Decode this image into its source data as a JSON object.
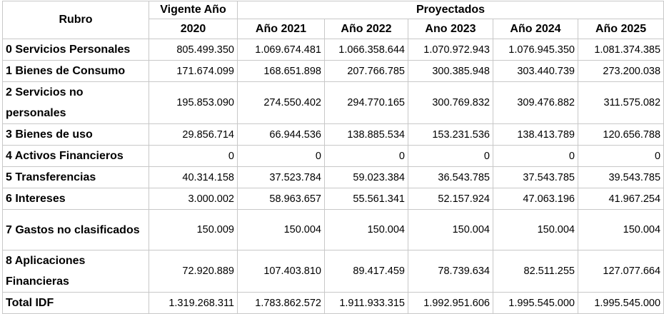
{
  "header": {
    "rubro": "Rubro",
    "vigente_line1": "Vigente Año",
    "vigente_line2": "2020",
    "proyectados": "Proyectados",
    "years": [
      "Año 2021",
      "Año 2022",
      "Ano 2023",
      "Año 2024",
      "Año 2025"
    ]
  },
  "rows": [
    {
      "label": "0 Servicios Personales",
      "values": [
        "805.499.350",
        "1.069.674.481",
        "1.066.358.644",
        "1.070.972.943",
        "1.076.945.350",
        "1.081.374.385"
      ]
    },
    {
      "label": "1 Bienes de Consumo",
      "values": [
        "171.674.099",
        "168.651.898",
        "207.766.785",
        "300.385.948",
        "303.440.739",
        "273.200.038"
      ]
    },
    {
      "label": "2 Servicios no personales",
      "values": [
        "195.853.090",
        "274.550.402",
        "294.770.165",
        "300.769.832",
        "309.476.882",
        "311.575.082"
      ]
    },
    {
      "label": "3 Bienes de uso",
      "values": [
        "29.856.714",
        "66.944.536",
        "138.885.534",
        "153.231.536",
        "138.413.789",
        "120.656.788"
      ]
    },
    {
      "label": "4 Activos Financieros",
      "values": [
        "0",
        "0",
        "0",
        "0",
        "0",
        "0"
      ]
    },
    {
      "label": "5 Transferencias",
      "values": [
        "40.314.158",
        "37.523.784",
        "59.023.384",
        "36.543.785",
        "37.543.785",
        "39.543.785"
      ]
    },
    {
      "label": "6 Intereses",
      "values": [
        "3.000.002",
        "58.963.657",
        "55.561.341",
        "52.157.924",
        "47.063.196",
        "41.967.254"
      ]
    },
    {
      "label": "7 Gastos no clasificados",
      "values": [
        "150.009",
        "150.004",
        "150.004",
        "150.004",
        "150.004",
        "150.004"
      ]
    },
    {
      "label": "8 Aplicaciones Financieras",
      "values": [
        "72.920.889",
        "107.403.810",
        "89.417.459",
        "78.739.634",
        "82.511.255",
        "127.077.664"
      ]
    }
  ],
  "total": {
    "label": "Total IDF",
    "values": [
      "1.319.268.311",
      "1.783.862.572",
      "1.911.933.315",
      "1.992.951.606",
      "1.995.545.000",
      "1.995.545.000"
    ]
  }
}
